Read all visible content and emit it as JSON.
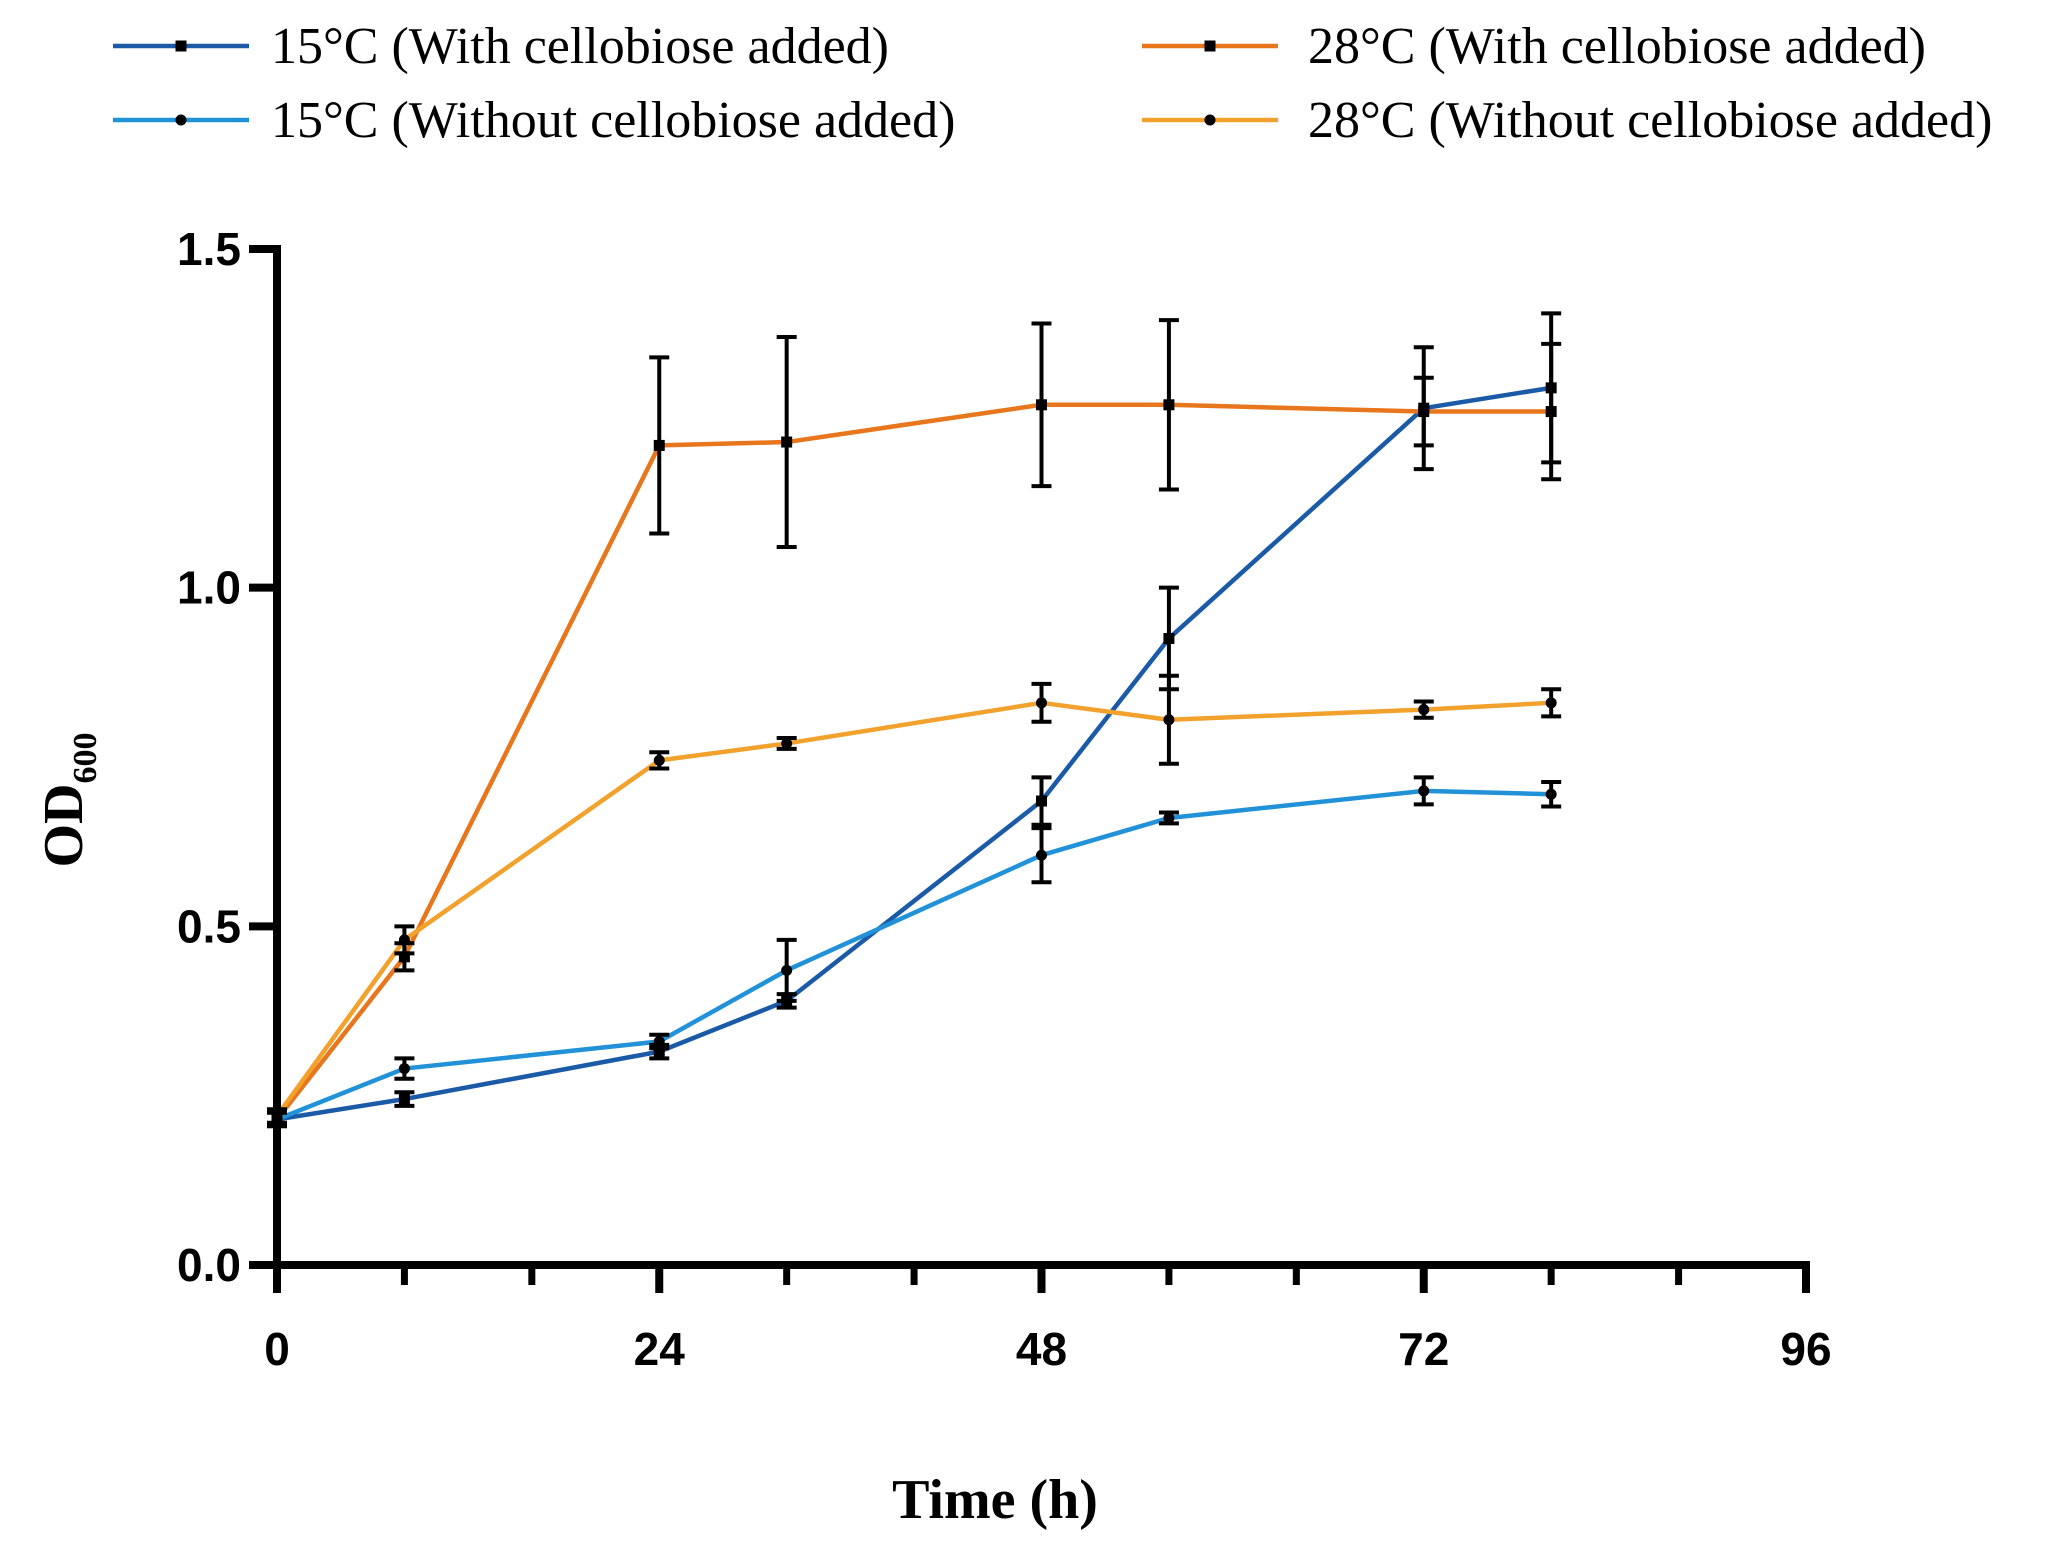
{
  "chart_data": {
    "type": "line",
    "xlabel": "Time (h)",
    "ylabel": "OD",
    "ylabel_sub": "600",
    "xlim": [
      0,
      96
    ],
    "ylim": [
      0,
      1.5
    ],
    "x_ticks": [
      "0",
      "24",
      "48",
      "72",
      "96"
    ],
    "y_ticks": [
      "0.0",
      "0.5",
      "1.0",
      "1.5"
    ],
    "x_tick_values": [
      0,
      24,
      48,
      72,
      96
    ],
    "y_tick_values": [
      0,
      0.5,
      1.0,
      1.5
    ],
    "x_minor_tick_values": [
      8,
      16,
      32,
      40,
      56,
      64,
      80,
      88
    ],
    "grid": false,
    "legend_position": "top",
    "x": [
      0,
      8,
      24,
      32,
      48,
      56,
      72,
      80
    ],
    "series": [
      {
        "name": "15°C (With cellobiose added)",
        "color": "#1a5aa6",
        "marker": "square",
        "values": [
          0.215,
          0.245,
          0.315,
          0.39,
          0.685,
          0.925,
          1.265,
          1.295
        ],
        "errors": [
          0.01,
          0.01,
          0.01,
          0.01,
          0.035,
          0.075,
          0.09,
          0.11
        ]
      },
      {
        "name": "15°C (Without cellobiose added)",
        "color": "#2191d8",
        "marker": "circle",
        "values": [
          0.215,
          0.29,
          0.33,
          0.435,
          0.605,
          0.66,
          0.7,
          0.695
        ],
        "errors": [
          0.01,
          0.015,
          0.01,
          0.045,
          0.04,
          0.008,
          0.02,
          0.018
        ]
      },
      {
        "name": "28°C (With cellobiose added)",
        "color": "#e8761c",
        "marker": "square",
        "values": [
          0.215,
          0.455,
          1.21,
          1.215,
          1.27,
          1.27,
          1.26,
          1.26
        ],
        "errors": [
          0.01,
          0.02,
          0.13,
          0.155,
          0.12,
          0.125,
          0.05,
          0.1
        ]
      },
      {
        "name": "28°C (Without cellobiose added)",
        "color": "#f2a12d",
        "marker": "circle",
        "values": [
          0.22,
          0.48,
          0.745,
          0.77,
          0.83,
          0.805,
          0.82,
          0.83
        ],
        "errors": [
          0.01,
          0.02,
          0.012,
          0.008,
          0.028,
          0.065,
          0.012,
          0.02
        ]
      }
    ]
  }
}
